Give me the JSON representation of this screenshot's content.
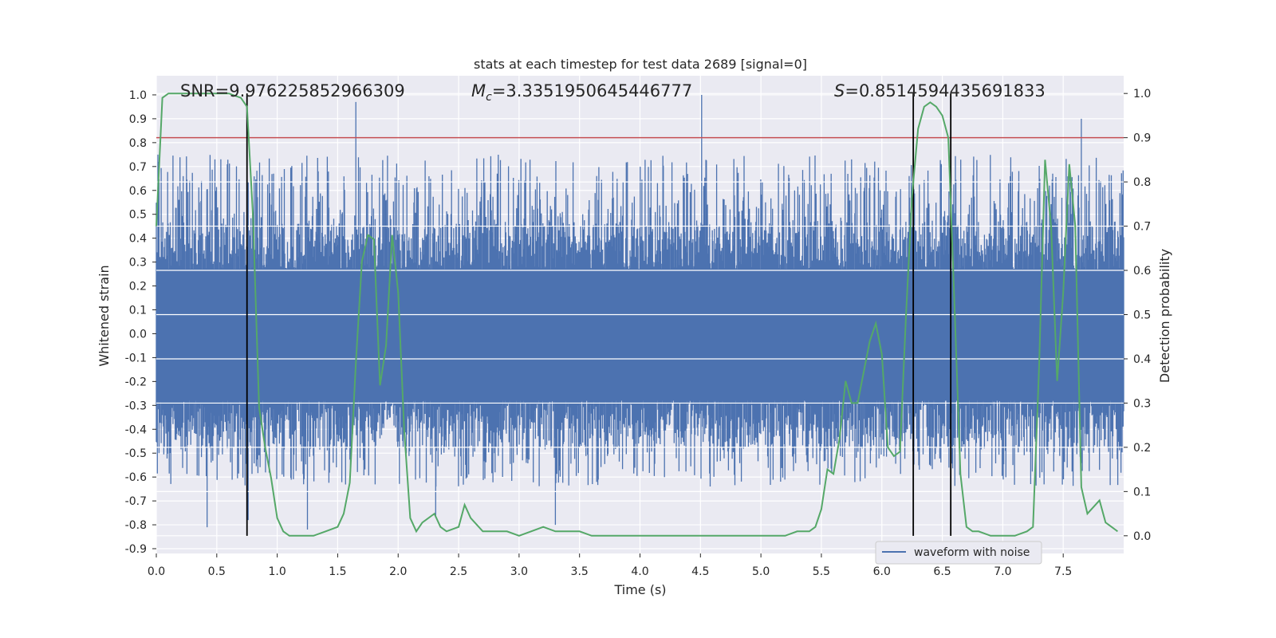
{
  "chart_data": {
    "type": "line",
    "title": "stats at each timestep for test data 2689 [signal=0]",
    "xlabel": "Time (s)",
    "ylabel": "Whitened strain",
    "y2label": "Detection probability",
    "xlim": [
      0.0,
      8.0
    ],
    "ylim": [
      -0.92,
      1.08
    ],
    "y2lim": [
      -0.04,
      1.04
    ],
    "xticks": [
      "0.0",
      "0.5",
      "1.0",
      "1.5",
      "2.0",
      "2.5",
      "3.0",
      "3.5",
      "4.0",
      "4.5",
      "5.0",
      "5.5",
      "6.0",
      "6.5",
      "7.0",
      "7.5"
    ],
    "xtick_values": [
      0.0,
      0.5,
      1.0,
      1.5,
      2.0,
      2.5,
      3.0,
      3.5,
      4.0,
      4.5,
      5.0,
      5.5,
      6.0,
      6.5,
      7.0,
      7.5
    ],
    "yticks": [
      "1.0",
      "0.9",
      "0.8",
      "0.7",
      "0.6",
      "0.5",
      "0.4",
      "0.3",
      "0.2",
      "0.1",
      "0.0",
      "-0.1",
      "-0.2",
      "-0.3",
      "-0.4",
      "-0.5",
      "-0.6",
      "-0.7",
      "-0.8",
      "-0.9"
    ],
    "ytick_values": [
      1.0,
      0.9,
      0.8,
      0.7,
      0.6,
      0.5,
      0.4,
      0.3,
      0.2,
      0.1,
      0.0,
      -0.1,
      -0.2,
      -0.3,
      -0.4,
      -0.5,
      -0.6,
      -0.7,
      -0.8,
      -0.9
    ],
    "y2ticks": [
      "1.0",
      "0.9",
      "0.8",
      "0.7",
      "0.6",
      "0.5",
      "0.4",
      "0.3",
      "0.2",
      "0.1",
      "0.0"
    ],
    "y2tick_values": [
      1.0,
      0.9,
      0.8,
      0.7,
      0.6,
      0.5,
      0.4,
      0.3,
      0.2,
      0.1,
      0.0
    ],
    "grid": true,
    "legend": {
      "placement": "bottom-right",
      "entries": [
        {
          "label": "waveform with noise",
          "color": "#4c72b0"
        }
      ]
    },
    "annotations": {
      "snr": "SNR=9.976225852966309",
      "mc_symbol": "M",
      "mc_sub": "c",
      "mc_value": "=3.3351950645446777",
      "s_symbol": "S",
      "s_value": "=0.8514594435691833"
    },
    "waveform": {
      "name": "waveform with noise",
      "color": "#4c72b0",
      "band_upper": 0.27,
      "band_lower": -0.28,
      "spikes": [
        {
          "x": 0.75,
          "y": 0.98
        },
        {
          "x": 0.76,
          "y": -0.78
        },
        {
          "x": 1.65,
          "y": 0.97
        },
        {
          "x": 1.25,
          "y": -0.82
        },
        {
          "x": 4.51,
          "y": 1.0
        },
        {
          "x": 7.65,
          "y": 0.9
        },
        {
          "x": 3.3,
          "y": -0.8
        },
        {
          "x": 0.42,
          "y": -0.81
        },
        {
          "x": 2.31,
          "y": -0.77
        }
      ]
    },
    "threshold": {
      "value": 0.9,
      "axis": "right",
      "color": "#c44e52"
    },
    "vertical_lines": [
      0.75,
      6.26,
      6.57
    ],
    "detection_probability": {
      "name": "",
      "color": "#55a868",
      "axis": "right",
      "x": [
        0.0,
        0.05,
        0.1,
        0.2,
        0.3,
        0.4,
        0.5,
        0.6,
        0.7,
        0.75,
        0.8,
        0.85,
        0.9,
        0.95,
        1.0,
        1.05,
        1.1,
        1.2,
        1.3,
        1.4,
        1.5,
        1.55,
        1.6,
        1.65,
        1.7,
        1.75,
        1.8,
        1.85,
        1.9,
        1.95,
        2.0,
        2.05,
        2.1,
        2.15,
        2.2,
        2.3,
        2.35,
        2.4,
        2.5,
        2.55,
        2.6,
        2.7,
        2.8,
        2.9,
        3.0,
        3.1,
        3.2,
        3.3,
        3.4,
        3.5,
        3.6,
        3.8,
        4.0,
        4.2,
        4.4,
        4.6,
        4.8,
        5.0,
        5.2,
        5.3,
        5.4,
        5.45,
        5.5,
        5.55,
        5.6,
        5.65,
        5.7,
        5.75,
        5.8,
        5.85,
        5.9,
        5.95,
        6.0,
        6.05,
        6.1,
        6.15,
        6.2,
        6.25,
        6.3,
        6.35,
        6.4,
        6.45,
        6.5,
        6.55,
        6.6,
        6.65,
        6.7,
        6.75,
        6.8,
        6.9,
        7.0,
        7.1,
        7.2,
        7.25,
        7.3,
        7.35,
        7.4,
        7.45,
        7.5,
        7.55,
        7.6,
        7.65,
        7.7,
        7.8,
        7.85,
        7.9,
        7.95
      ],
      "y": [
        0.7,
        0.99,
        1.0,
        1.0,
        1.0,
        1.0,
        1.0,
        1.0,
        0.99,
        0.97,
        0.72,
        0.29,
        0.2,
        0.13,
        0.04,
        0.01,
        0.0,
        0.0,
        0.0,
        0.01,
        0.02,
        0.05,
        0.12,
        0.39,
        0.62,
        0.68,
        0.67,
        0.34,
        0.43,
        0.68,
        0.55,
        0.24,
        0.04,
        0.01,
        0.03,
        0.05,
        0.02,
        0.01,
        0.02,
        0.07,
        0.04,
        0.01,
        0.01,
        0.01,
        0.0,
        0.01,
        0.02,
        0.01,
        0.01,
        0.01,
        0.0,
        0.0,
        0.0,
        0.0,
        0.0,
        0.0,
        0.0,
        0.0,
        0.0,
        0.01,
        0.01,
        0.02,
        0.06,
        0.15,
        0.14,
        0.22,
        0.35,
        0.3,
        0.3,
        0.37,
        0.44,
        0.48,
        0.41,
        0.2,
        0.18,
        0.19,
        0.5,
        0.77,
        0.92,
        0.97,
        0.98,
        0.97,
        0.95,
        0.9,
        0.53,
        0.14,
        0.02,
        0.01,
        0.01,
        0.0,
        0.0,
        0.0,
        0.01,
        0.02,
        0.38,
        0.85,
        0.7,
        0.35,
        0.55,
        0.84,
        0.7,
        0.11,
        0.05,
        0.08,
        0.03,
        0.02,
        0.01
      ]
    }
  }
}
